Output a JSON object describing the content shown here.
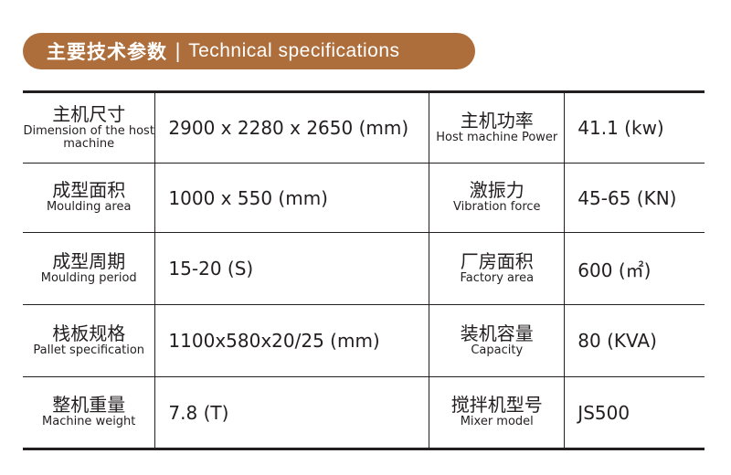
{
  "header": {
    "title_zh": "主要技术参数",
    "separator": "|",
    "title_en": "Technical specifications",
    "color": "#ad6e3c"
  },
  "rows": [
    {
      "l_zh": "主机尺寸",
      "l_en": "Dimension of the host machine",
      "l_val": "2900 x 2280 x 2650 (mm)",
      "r_zh": "主机功率",
      "r_en": "Host machine Power",
      "r_val": "41.1 (kw)"
    },
    {
      "l_zh": "成型面积",
      "l_en": "Moulding area",
      "l_val": "1000 x 550 (mm)",
      "r_zh": "激振力",
      "r_en": "Vibration force",
      "r_val": "45-65 (KN)"
    },
    {
      "l_zh": "成型周期",
      "l_en": "Moulding period",
      "l_val": "15-20 (S)",
      "r_zh": "厂房面积",
      "r_en": "Factory area",
      "r_val": "600 (㎡)"
    },
    {
      "l_zh": "栈板规格",
      "l_en": "Pallet specification",
      "l_val": "1100x580x20/25 (mm)",
      "r_zh": "装机容量",
      "r_en": "Capacity",
      "r_val": "80 (KVA)"
    },
    {
      "l_zh": "整机重量",
      "l_en": "Machine weight",
      "l_val": "7.8 (T)",
      "r_zh": "搅拌机型号",
      "r_en": "Mixer model",
      "r_val": "JS500"
    }
  ]
}
